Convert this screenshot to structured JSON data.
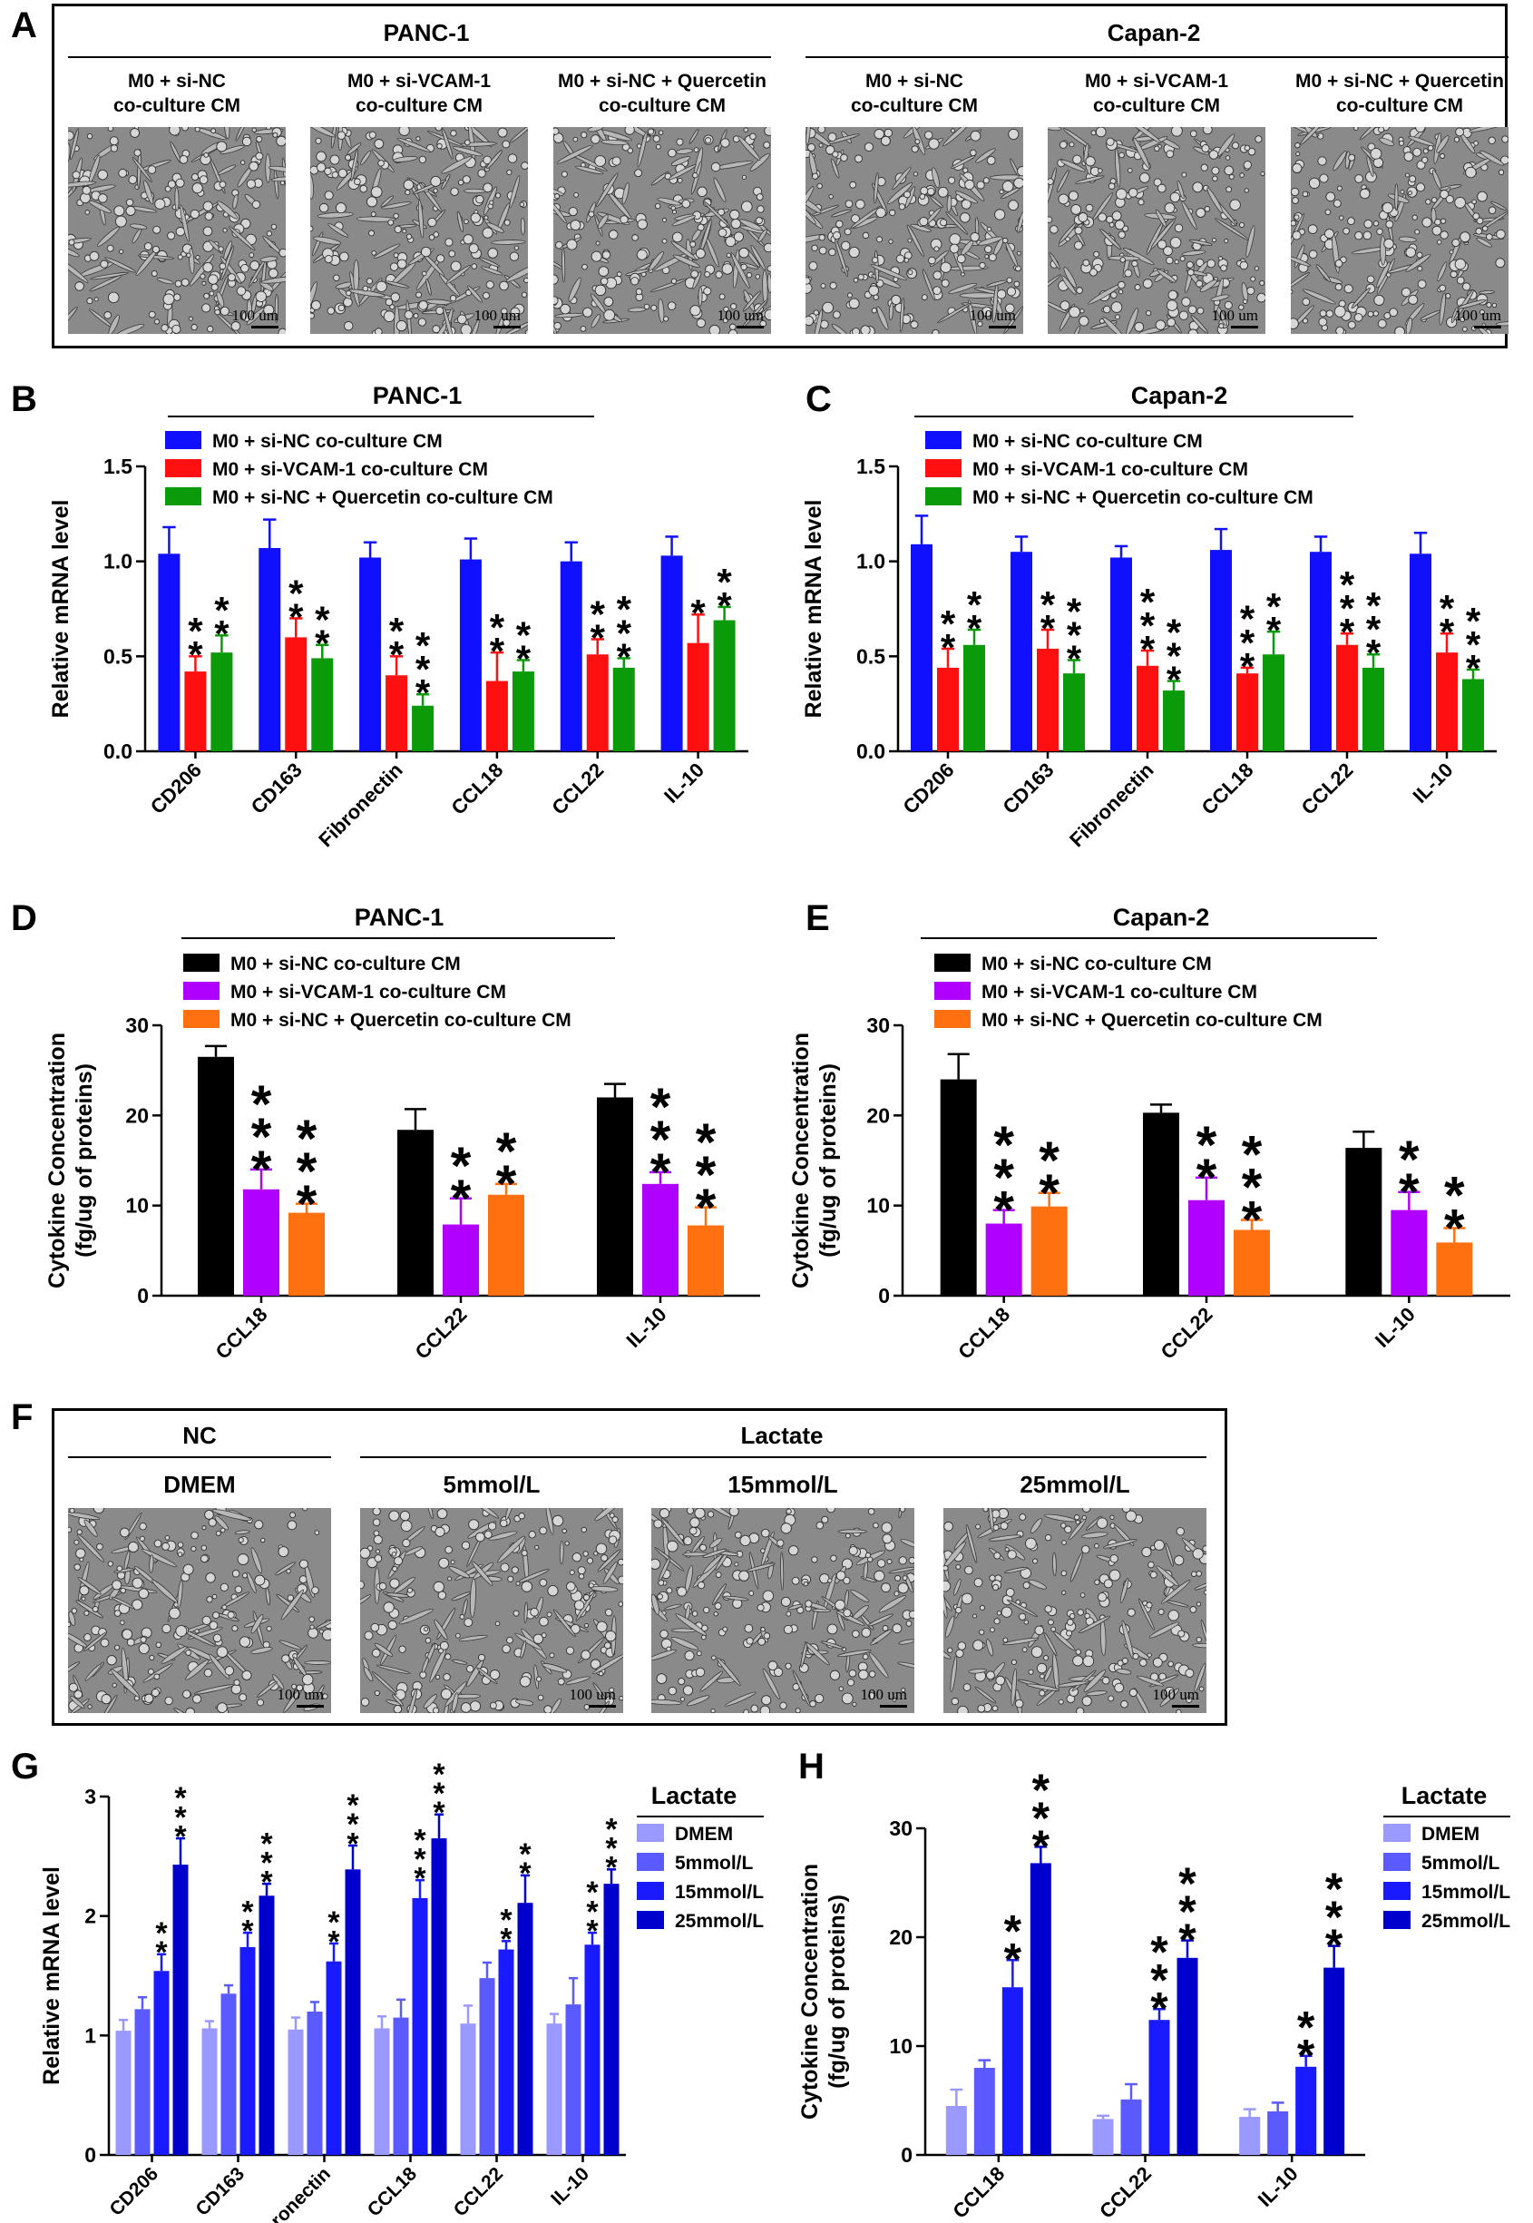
{
  "panels": {
    "A": "A",
    "B": "B",
    "C": "C",
    "D": "D",
    "E": "E",
    "F": "F",
    "G": "G",
    "H": "H"
  },
  "panel_a": {
    "groups": [
      "PANC-1",
      "Capan-2"
    ],
    "images": [
      {
        "label": "M0 + si-NC\nco-culture CM",
        "scale": "100 um"
      },
      {
        "label": "M0 + si-VCAM-1\nco-culture CM",
        "scale": "100 um"
      },
      {
        "label": "M0 + si-NC + Quercetin\nco-culture CM",
        "scale": "100 um"
      },
      {
        "label": "M0 + si-NC\nco-culture CM",
        "scale": "100 um"
      },
      {
        "label": "M0 + si-VCAM-1\nco-culture CM",
        "scale": "100 um"
      },
      {
        "label": "M0 + si-NC + Quercetin\nco-culture CM",
        "scale": "100 um"
      }
    ]
  },
  "panel_f": {
    "groups": [
      "NC",
      "Lactate"
    ],
    "images": [
      {
        "label": "DMEM",
        "scale": "100 um"
      },
      {
        "label": "5mmol/L",
        "scale": "100 um"
      },
      {
        "label": "15mmol/L",
        "scale": "100 um"
      },
      {
        "label": "25mmol/L",
        "scale": "100 um"
      }
    ]
  },
  "colors": {
    "blue": "#1010ff",
    "red": "#ff1010",
    "green": "#0a9a0a",
    "black": "#000000",
    "purple": "#b000ff",
    "orange": "#ff7010",
    "lac1": "#9999ff",
    "lac2": "#5a5aff",
    "lac3": "#1a1aff",
    "lac4": "#0000cc"
  },
  "chart_data": [
    {
      "id": "B",
      "type": "bar",
      "title": "PANC-1",
      "ylabel": "Relative mRNA level",
      "ylim": [
        0,
        1.5
      ],
      "yticks": [
        "0.0",
        "0.5",
        "1.0",
        "1.5"
      ],
      "categories": [
        "CD206",
        "CD163",
        "Fibronectin",
        "CCL18",
        "CCL22",
        "IL-10"
      ],
      "series": [
        {
          "name": "M0 + si-NC co-culture CM",
          "color": "#1010ff",
          "values": [
            1.04,
            1.07,
            1.02,
            1.01,
            1.0,
            1.03
          ],
          "errors": [
            0.14,
            0.15,
            0.08,
            0.11,
            0.1,
            0.1
          ],
          "stars": [
            "",
            "",
            "",
            "",
            "",
            ""
          ]
        },
        {
          "name": "M0 + si-VCAM-1 co-culture CM",
          "color": "#ff1010",
          "values": [
            0.42,
            0.6,
            0.4,
            0.37,
            0.51,
            0.57
          ],
          "errors": [
            0.08,
            0.1,
            0.1,
            0.15,
            0.08,
            0.15
          ],
          "stars": [
            "**",
            "**",
            "**",
            "**",
            "**",
            "*"
          ]
        },
        {
          "name": "M0 + si-NC + Quercetin co-culture CM",
          "color": "#0a9a0a",
          "values": [
            0.52,
            0.49,
            0.24,
            0.42,
            0.44,
            0.69
          ],
          "errors": [
            0.09,
            0.07,
            0.06,
            0.06,
            0.05,
            0.07
          ],
          "stars": [
            "**",
            "**",
            "***",
            "**",
            "***",
            "**"
          ]
        }
      ]
    },
    {
      "id": "C",
      "type": "bar",
      "title": "Capan-2",
      "ylabel": "Relative mRNA level",
      "ylim": [
        0,
        1.5
      ],
      "yticks": [
        "0.0",
        "0.5",
        "1.0",
        "1.5"
      ],
      "categories": [
        "CD206",
        "CD163",
        "Fibronectin",
        "CCL18",
        "CCL22",
        "IL-10"
      ],
      "series": [
        {
          "name": "M0 + si-NC co-culture CM",
          "color": "#1010ff",
          "values": [
            1.09,
            1.05,
            1.02,
            1.06,
            1.05,
            1.04
          ],
          "errors": [
            0.15,
            0.08,
            0.06,
            0.11,
            0.08,
            0.11
          ],
          "stars": [
            "",
            "",
            "",
            "",
            "",
            ""
          ]
        },
        {
          "name": "M0 + si-VCAM-1 co-culture CM",
          "color": "#ff1010",
          "values": [
            0.44,
            0.54,
            0.45,
            0.41,
            0.56,
            0.52
          ],
          "errors": [
            0.1,
            0.1,
            0.08,
            0.03,
            0.06,
            0.1
          ],
          "stars": [
            "**",
            "**",
            "***",
            "***",
            "***",
            "**"
          ]
        },
        {
          "name": "M0 + si-NC + Quercetin co-culture CM",
          "color": "#0a9a0a",
          "values": [
            0.56,
            0.41,
            0.32,
            0.51,
            0.44,
            0.38
          ],
          "errors": [
            0.08,
            0.07,
            0.05,
            0.12,
            0.07,
            0.05
          ],
          "stars": [
            "**",
            "***",
            "***",
            "**",
            "***",
            "***"
          ]
        }
      ]
    },
    {
      "id": "D",
      "type": "bar",
      "title": "PANC-1",
      "ylabel": "Cytokine Concentration\n(fg/ug of proteins)",
      "ylim": [
        0,
        30
      ],
      "yticks": [
        "0",
        "10",
        "20",
        "30"
      ],
      "categories": [
        "CCL18",
        "CCL22",
        "IL-10"
      ],
      "series": [
        {
          "name": "M0 + si-NC co-culture CM",
          "color": "#000000",
          "values": [
            26.5,
            18.4,
            22.0
          ],
          "errors": [
            1.2,
            2.3,
            1.5
          ],
          "stars": [
            "",
            "",
            ""
          ]
        },
        {
          "name": "M0 + si-VCAM-1 co-culture CM",
          "color": "#b000ff",
          "values": [
            11.8,
            7.9,
            12.4
          ],
          "errors": [
            2.2,
            2.9,
            1.3
          ],
          "stars": [
            "***",
            "**",
            "***"
          ]
        },
        {
          "name": "M0 + si-NC + Quercetin co-culture CM",
          "color": "#ff7010",
          "values": [
            9.2,
            11.2,
            7.8
          ],
          "errors": [
            1.0,
            1.2,
            2.0
          ],
          "stars": [
            "***",
            "**",
            "***"
          ]
        }
      ]
    },
    {
      "id": "E",
      "type": "bar",
      "title": "Capan-2",
      "ylabel": "Cytokine Concentration\n(fg/ug of proteins)",
      "ylim": [
        0,
        30
      ],
      "yticks": [
        "0",
        "10",
        "20",
        "30"
      ],
      "categories": [
        "CCL18",
        "CCL22",
        "IL-10"
      ],
      "series": [
        {
          "name": "M0 + si-NC co-culture CM",
          "color": "#000000",
          "values": [
            24.0,
            20.3,
            16.4
          ],
          "errors": [
            2.8,
            0.9,
            1.8
          ],
          "stars": [
            "",
            "",
            ""
          ]
        },
        {
          "name": "M0 + si-VCAM-1 co-culture CM",
          "color": "#b000ff",
          "values": [
            8.0,
            10.6,
            9.5
          ],
          "errors": [
            1.5,
            2.5,
            2.0
          ],
          "stars": [
            "***",
            "**",
            "**"
          ]
        },
        {
          "name": "M0 + si-NC + Quercetin co-culture CM",
          "color": "#ff7010",
          "values": [
            9.9,
            7.3,
            5.9
          ],
          "errors": [
            1.5,
            1.1,
            1.6
          ],
          "stars": [
            "**",
            "***",
            "**"
          ]
        }
      ]
    },
    {
      "id": "G",
      "type": "bar",
      "title": "",
      "ylabel": "Relative mRNA level",
      "ylim": [
        0,
        3
      ],
      "yticks": [
        "0",
        "1",
        "2",
        "3"
      ],
      "legend_title": "Lactate",
      "categories": [
        "CD206",
        "CD163",
        "Fibronectin",
        "CCL18",
        "CCL22",
        "IL-10"
      ],
      "series": [
        {
          "name": "DMEM",
          "color": "#9999ff",
          "values": [
            1.04,
            1.06,
            1.05,
            1.06,
            1.1,
            1.1
          ],
          "errors": [
            0.09,
            0.06,
            0.1,
            0.1,
            0.15,
            0.08
          ],
          "stars": [
            "",
            "",
            "",
            "",
            "",
            ""
          ]
        },
        {
          "name": "5mmol/L",
          "color": "#5a5aff",
          "values": [
            1.22,
            1.35,
            1.2,
            1.15,
            1.48,
            1.26
          ],
          "errors": [
            0.1,
            0.07,
            0.08,
            0.15,
            0.13,
            0.22
          ],
          "stars": [
            "",
            "",
            "",
            "",
            "",
            ""
          ]
        },
        {
          "name": "15mmol/L",
          "color": "#1a1aff",
          "values": [
            1.54,
            1.74,
            1.62,
            2.15,
            1.72,
            1.76
          ],
          "errors": [
            0.14,
            0.12,
            0.15,
            0.15,
            0.07,
            0.1
          ],
          "stars": [
            "**",
            "**",
            "**",
            "***",
            "**",
            "***"
          ]
        },
        {
          "name": "25mmol/L",
          "color": "#0000cc",
          "values": [
            2.43,
            2.17,
            2.39,
            2.65,
            2.11,
            2.27
          ],
          "errors": [
            0.22,
            0.1,
            0.2,
            0.2,
            0.23,
            0.12
          ],
          "stars": [
            "***",
            "***",
            "***",
            "***",
            "**",
            "***"
          ]
        }
      ]
    },
    {
      "id": "H",
      "type": "bar",
      "title": "",
      "ylabel": "Cytokine Concentration\n(fg/ug of proteins)",
      "ylim": [
        0,
        30
      ],
      "yticks": [
        "0",
        "10",
        "20",
        "30"
      ],
      "legend_title": "Lactate",
      "categories": [
        "CCL18",
        "CCL22",
        "IL-10"
      ],
      "series": [
        {
          "name": "DMEM",
          "color": "#9999ff",
          "values": [
            4.5,
            3.3,
            3.5
          ],
          "errors": [
            1.5,
            0.3,
            0.7
          ],
          "stars": [
            "",
            "",
            ""
          ]
        },
        {
          "name": "5mmol/L",
          "color": "#5a5aff",
          "values": [
            8.0,
            5.1,
            4.0
          ],
          "errors": [
            0.7,
            1.4,
            0.8
          ],
          "stars": [
            "",
            "",
            ""
          ]
        },
        {
          "name": "15mmol/L",
          "color": "#1a1aff",
          "values": [
            15.4,
            12.4,
            8.1
          ],
          "errors": [
            2.5,
            1.0,
            1.0
          ],
          "stars": [
            "**",
            "***",
            "**"
          ]
        },
        {
          "name": "25mmol/L",
          "color": "#0000cc",
          "values": [
            26.8,
            18.1,
            17.2
          ],
          "errors": [
            1.5,
            1.6,
            2.0
          ],
          "stars": [
            "***",
            "***",
            "***"
          ]
        }
      ]
    }
  ]
}
